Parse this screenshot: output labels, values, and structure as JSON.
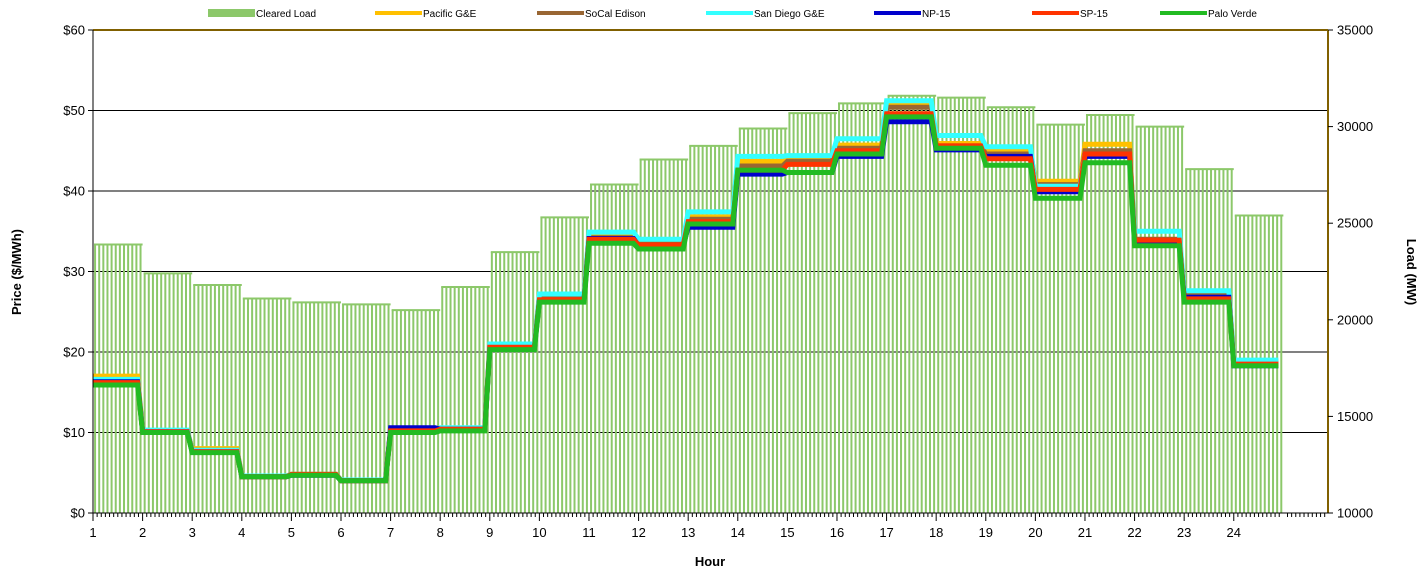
{
  "chart_data": {
    "type": "line",
    "title": "",
    "xlabel": "Hour",
    "ylabel": "Price ($/MWh)",
    "y2label": "Load (MW)",
    "x_categories": [
      "1",
      "2",
      "3",
      "4",
      "5",
      "6",
      "7",
      "8",
      "9",
      "10",
      "11",
      "12",
      "13",
      "14",
      "15",
      "16",
      "17",
      "18",
      "19",
      "20",
      "21",
      "22",
      "23",
      "24"
    ],
    "ylim": [
      0,
      60
    ],
    "y_ticks": [
      "$0",
      "$10",
      "$20",
      "$30",
      "$40",
      "$50",
      "$60"
    ],
    "y2lim": [
      10000,
      35000
    ],
    "y2_ticks": [
      "10000",
      "15000",
      "20000",
      "25000",
      "30000",
      "35000"
    ],
    "grid": "horizontal",
    "legend_position": "top",
    "bar_series": {
      "name": "Cleared Load",
      "color": "#8cc86a",
      "values": [
        23900,
        22400,
        21800,
        21100,
        20900,
        20800,
        20500,
        21700,
        23500,
        25300,
        27000,
        28300,
        29000,
        29900,
        30700,
        31200,
        31600,
        31500,
        31000,
        30100,
        30600,
        30000,
        27800,
        25400
      ]
    },
    "series": [
      {
        "name": "Pacific G&E",
        "color": "#ffc000",
        "values": [
          17.0,
          10.2,
          8.0,
          4.6,
          4.8,
          4.1,
          10.2,
          10.5,
          20.8,
          26.8,
          34.5,
          33.6,
          36.8,
          43.7,
          43.9,
          45.7,
          50.8,
          45.9,
          45.0,
          41.2,
          45.8,
          33.8,
          27.4,
          18.8
        ]
      },
      {
        "name": "SoCal Edison",
        "color": "#996633",
        "values": [
          16.4,
          10.2,
          7.8,
          4.6,
          4.8,
          4.1,
          10.3,
          10.4,
          20.7,
          26.6,
          34.2,
          33.4,
          36.5,
          43.1,
          43.7,
          45.3,
          50.4,
          45.6,
          44.6,
          40.8,
          45.0,
          34.0,
          27.0,
          18.6
        ]
      },
      {
        "name": "San Diego G&E",
        "color": "#33ffff",
        "values": [
          16.6,
          10.3,
          7.8,
          4.6,
          4.8,
          4.1,
          10.3,
          10.6,
          21.0,
          27.2,
          34.9,
          34.0,
          37.4,
          44.3,
          44.4,
          46.5,
          51.2,
          46.9,
          45.5,
          40.6,
          44.6,
          35.0,
          27.6,
          19.0
        ]
      },
      {
        "name": "NP-15",
        "color": "#0000cc",
        "values": [
          16.3,
          10.1,
          7.6,
          4.5,
          4.7,
          4.0,
          10.6,
          10.4,
          20.5,
          26.4,
          34.1,
          33.2,
          35.5,
          42.1,
          42.3,
          44.3,
          48.6,
          45.1,
          44.3,
          39.9,
          44.3,
          33.5,
          26.8,
          18.3
        ]
      },
      {
        "name": "SP-15",
        "color": "#ff3300",
        "values": [
          16.2,
          10.1,
          7.6,
          4.5,
          4.8,
          4.0,
          10.2,
          10.4,
          20.6,
          26.5,
          34.0,
          33.3,
          36.2,
          42.6,
          43.3,
          45.0,
          49.6,
          45.6,
          44.0,
          40.2,
          44.6,
          33.9,
          26.6,
          18.5
        ]
      },
      {
        "name": "Palo Verde",
        "color": "#22bb22",
        "values": [
          15.9,
          10.0,
          7.5,
          4.5,
          4.7,
          4.0,
          10.0,
          10.2,
          20.3,
          26.2,
          33.5,
          32.8,
          35.9,
          42.6,
          42.3,
          44.6,
          49.2,
          45.3,
          43.2,
          39.1,
          43.5,
          33.2,
          26.2,
          18.3
        ]
      }
    ]
  }
}
